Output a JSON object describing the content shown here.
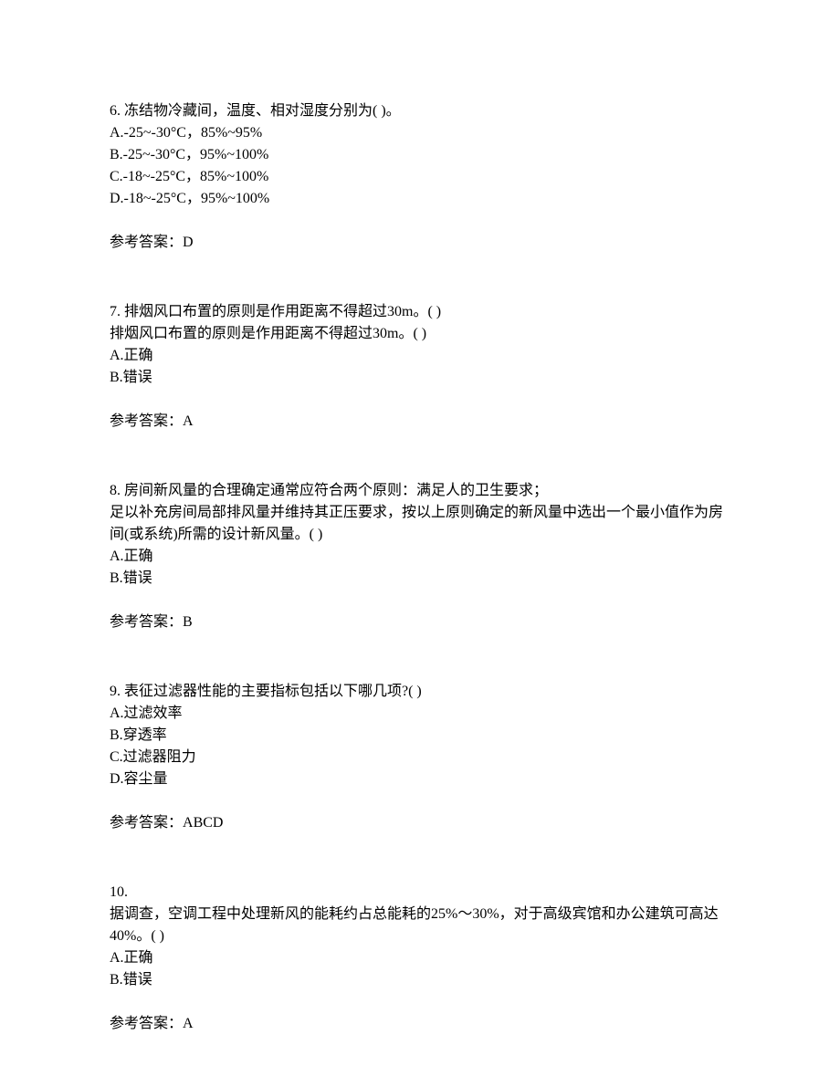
{
  "questions": [
    {
      "number": "6.",
      "text": "冻结物冷藏间，温度、相对湿度分别为(  )。",
      "options": [
        "A.-25~-30°C，85%~95%",
        "B.-25~-30°C，95%~100%",
        "C.-18~-25°C，85%~100%",
        "D.-18~-25°C，95%~100%"
      ],
      "answer_label": "参考答案：",
      "answer": "D"
    },
    {
      "number": "7.",
      "text": "排烟风口布置的原则是作用距离不得超过30m。(  )",
      "subtext": "排烟风口布置的原则是作用距离不得超过30m。(  )",
      "options": [
        "A.正确",
        "B.错误"
      ],
      "answer_label": "参考答案：",
      "answer": "A"
    },
    {
      "number": "8.",
      "text": "房间新风量的合理确定通常应符合两个原则：满足人的卫生要求；",
      "continuation": "足以补充房间局部排风量并维持其正压要求，按以上原则确定的新风量中选出一个最小值作为房间(或系统)所需的设计新风量。(  )",
      "options": [
        "A.正确",
        "B.错误"
      ],
      "answer_label": "参考答案：",
      "answer": "B"
    },
    {
      "number": "9.",
      "text": "表征过滤器性能的主要指标包括以下哪几项?(  )",
      "options": [
        "A.过滤效率",
        "B.穿透率",
        "C.过滤器阻力",
        "D.容尘量"
      ],
      "answer_label": "参考答案：",
      "answer": "ABCD"
    },
    {
      "number": "10.",
      "text_only_number": true,
      "continuation": "据调查，空调工程中处理新风的能耗约占总能耗的25%～30%，对于高级宾馆和办公建筑可高达40%。( )",
      "options": [
        "A.正确",
        "B.错误"
      ],
      "answer_label": "参考答案：",
      "answer": "A"
    }
  ]
}
